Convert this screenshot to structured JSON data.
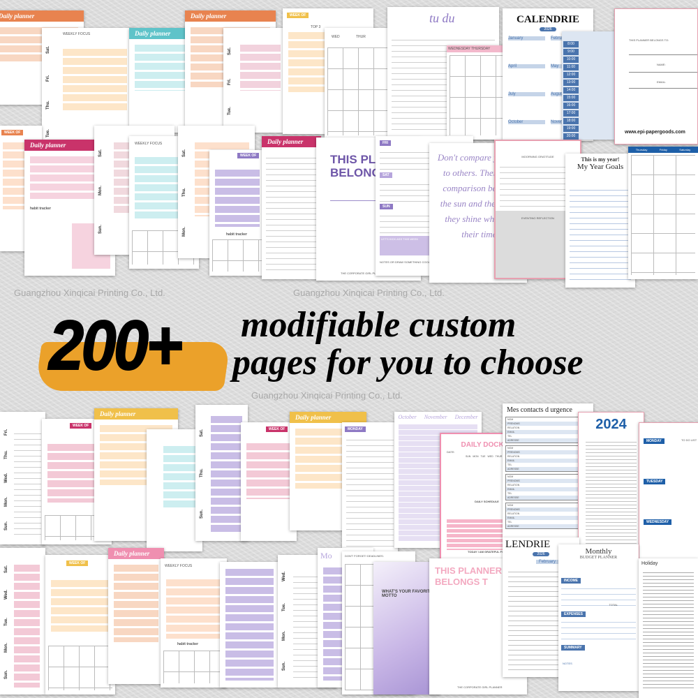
{
  "headline": {
    "number": "200+",
    "line1": "modifiable custom",
    "line2": "pages for you to choose"
  },
  "watermark": "Guangzhou Xinqicai Printing Co., Ltd.",
  "colors": {
    "accent": "#eba12a",
    "orange": "#e8834f",
    "magenta": "#c9336a",
    "teal": "#5fc3c9",
    "purple": "#8e79c4",
    "blue": "#4a74ad",
    "pink": "#ef8fb0"
  },
  "labels": {
    "daily_planner": "Daily planner",
    "week_of": "WEEK OF",
    "weekly_focus": "WEEKLY FOCUS",
    "top3": "TOP 3",
    "habit": "HABIT",
    "habit_tracker": "habit tracker",
    "days": [
      "Sat.",
      "Fri.",
      "Thu.",
      "Wed.",
      "Tue.",
      "Mon.",
      "Sun."
    ],
    "wed": "WED",
    "thur": "THUR",
    "tudu": "tu du",
    "wednesday": "WEDNESDAY",
    "thursday": "THURSDAY",
    "calendrie": "CALENDRIE",
    "year2026": "2026",
    "months": [
      "January",
      "February",
      "April",
      "May",
      "July",
      "August",
      "October",
      "November"
    ],
    "times": [
      "8:00",
      "9:00",
      "10:00",
      "11:00",
      "12:00",
      "13:00",
      "14:00",
      "15:00",
      "16:00",
      "17:00",
      "18:00",
      "19:00",
      "20:00"
    ],
    "belongs": "THIS PLANNER BELONGS TO:",
    "name": "NAME:",
    "email": "EMAIL:",
    "website": "www.epi-papergoods.com",
    "this_plan": "THIS PLAN",
    "belongs_short": "BELONGS",
    "corporate": "THE CORPORATE GIRL PLANNER",
    "fri": "FRI",
    "sat": "SAT",
    "sun": "SUN",
    "kick": "LET'S KICK ASS THIS WEEK",
    "notes_draw": "NOTES OR DRAW SOMETHING COOL!",
    "quote": "Don't compare yourself to others. There's no comparison between the sun and the moon, they shine when it's their time.",
    "morning": "MOORNING GRATITUDE",
    "evening": "EVENTING REFLECTION",
    "my_year": "This is my year!",
    "year_goals": "My Year Goals",
    "week_header": [
      "Thursday",
      "Friday",
      "Saturday"
    ],
    "oct_nov_dec": [
      "October",
      "November",
      "December"
    ],
    "docket": "DAILY DOCKET",
    "date": "DATE:",
    "weekdays": [
      "SUN",
      "MON",
      "TUE",
      "WED",
      "THUR",
      "FRI"
    ],
    "schedule": "DAILY SCHEDULE",
    "grateful": "TODAY I AM GRATEFUL FOR",
    "contacts": "Mes contacts d urgence",
    "contact_fields": [
      "NOM",
      "PRENOMS",
      "RELATION",
      "EMAIL",
      "TEL",
      "ADRESSE"
    ],
    "year2024": "2024",
    "todo": "TO DO LIST",
    "weekday_tags": [
      "MONDAY",
      "TUESDAY",
      "WEDNESDAY"
    ],
    "dont_forget": "DON'T FORGET/ DEADLINES:",
    "motto": "WHAT'S YOUR FAVORITE MOTTO",
    "belongs_t": "THIS PLANNER BELONGS T",
    "lendrie": "LENDRIE",
    "monthly": "Monthly",
    "budget": "BUDGET PLANNER",
    "income": "INCOME",
    "expenses": "EXPENSES",
    "summary": "SUMMARY",
    "total": "TOTAL",
    "notes": "NOTES",
    "holiday": "Holiday",
    "mo": "Mo"
  }
}
